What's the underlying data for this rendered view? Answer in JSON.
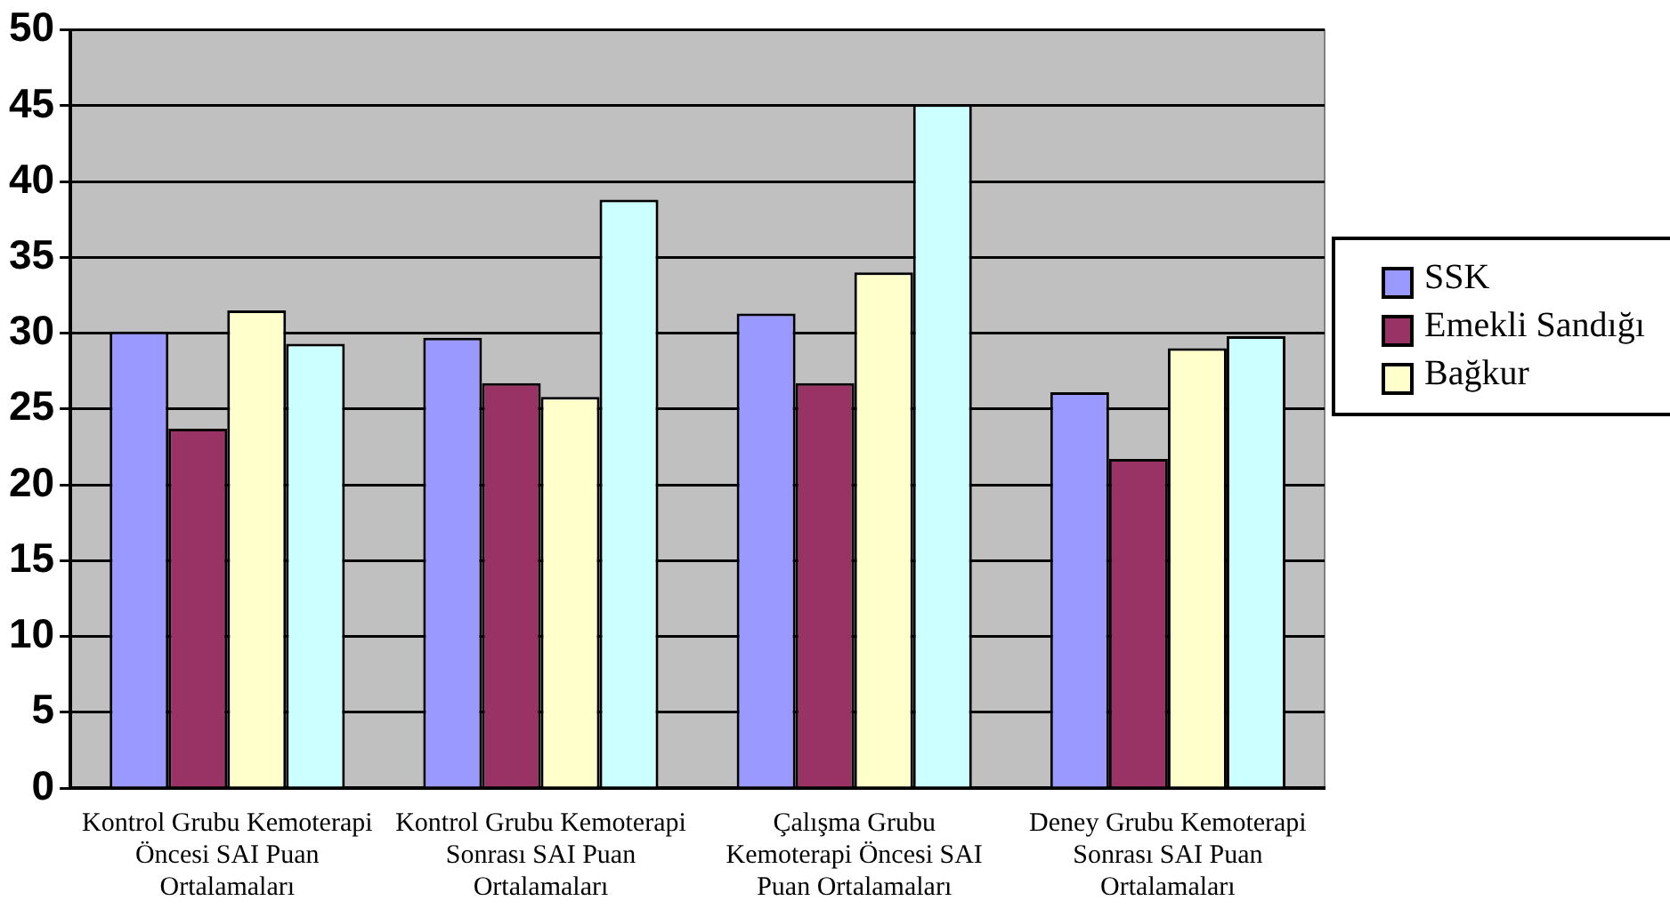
{
  "chart_data": {
    "type": "bar",
    "categories": [
      "Kontrol Grubu Kemoterapi Öncesi SAI Puan Ortalamaları",
      "Kontrol Grubu Kemoterapi Sonrası SAI Puan Ortalamaları",
      "Çalışma Grubu Kemoterapi Öncesi SAI Puan Ortalamaları",
      "Deney Grubu Kemoterapi Sonrası SAI Puan Ortalamaları"
    ],
    "series": [
      {
        "name": "SSK",
        "color": "#9999ff",
        "values": [
          30.1,
          29.7,
          31.3,
          26.1
        ]
      },
      {
        "name": "Emekli Sandığı",
        "color": "#993366",
        "values": [
          23.7,
          26.7,
          26.7,
          21.7
        ]
      },
      {
        "name": "Bağkur",
        "color": "#ffffcc",
        "values": [
          31.5,
          25.8,
          34.0,
          29.0
        ]
      },
      {
        "color": "#ccffff",
        "values": [
          29.3,
          38.8,
          45.1,
          29.8
        ]
      }
    ],
    "ylim": [
      0,
      50
    ],
    "yticks": [
      0,
      5,
      10,
      15,
      20,
      25,
      30,
      35,
      40,
      45,
      50
    ],
    "grid": "y",
    "legend": "right"
  }
}
